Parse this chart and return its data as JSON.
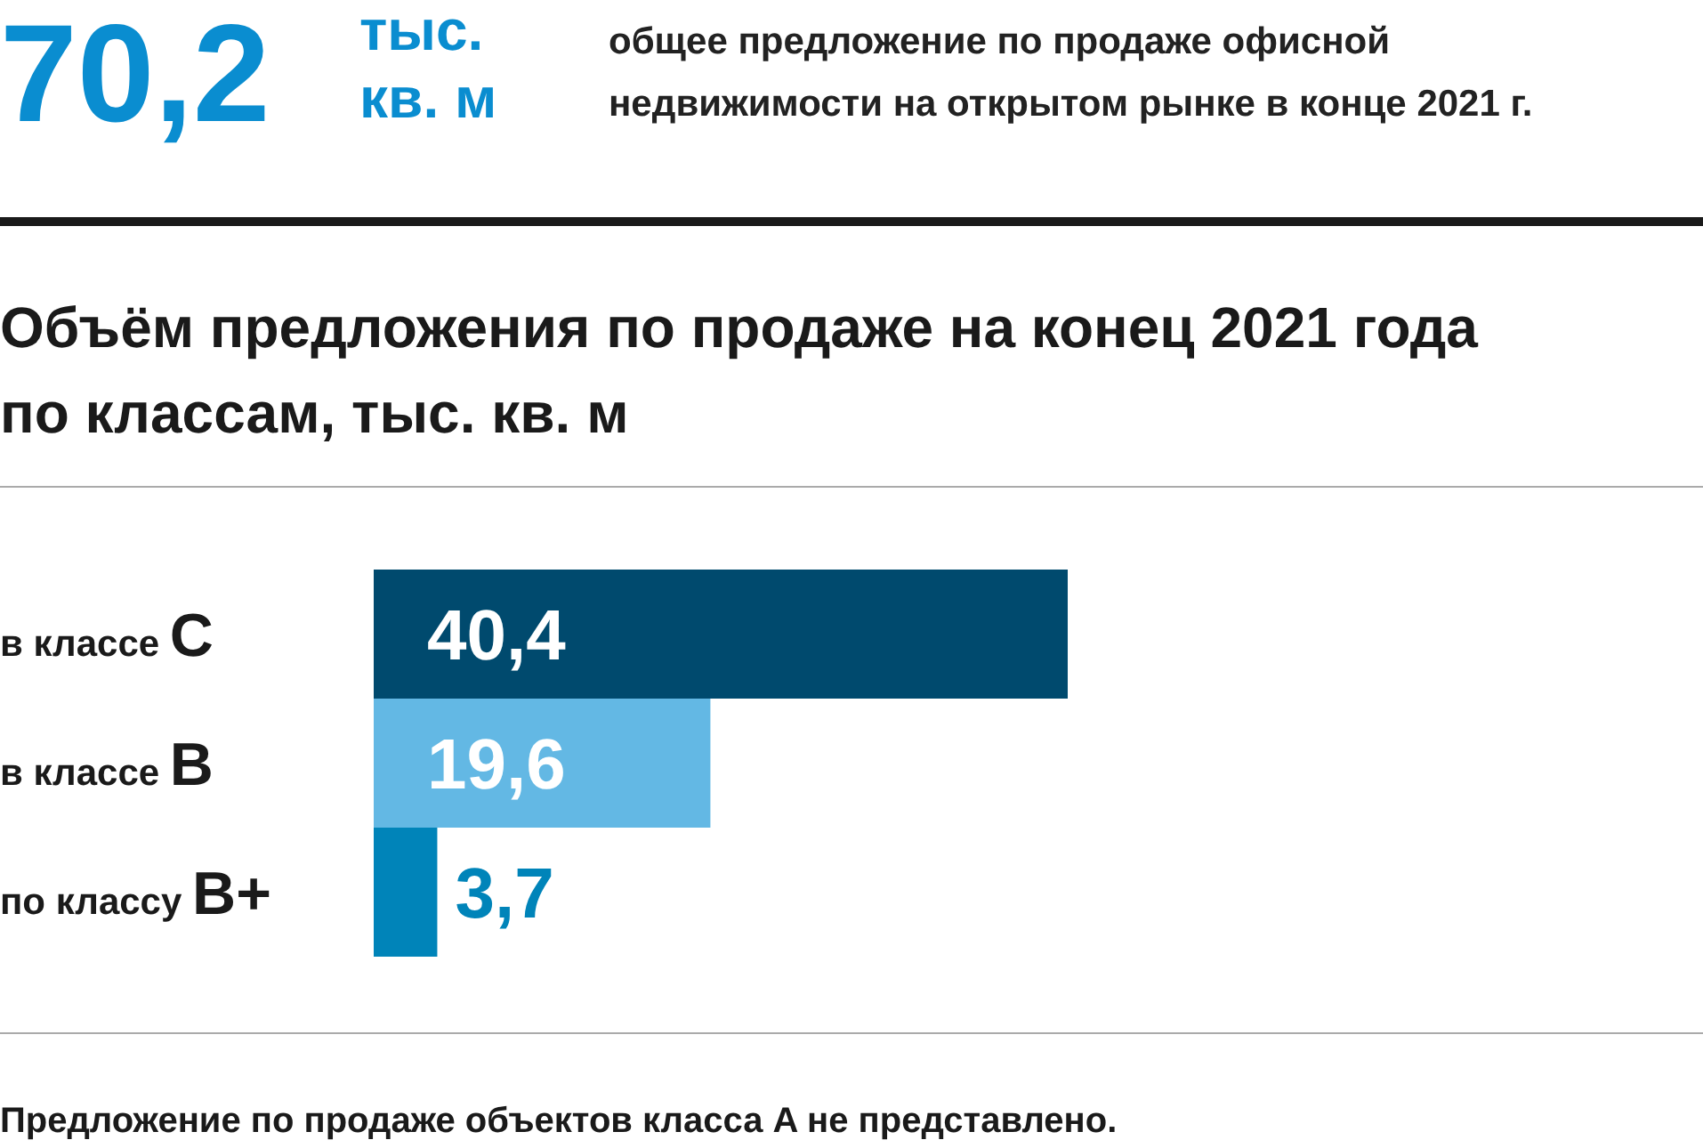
{
  "chart_data": {
    "type": "bar",
    "orientation": "horizontal",
    "title": "Объём предложения по продаже на конец 2021 года по классам, тыс. кв. м",
    "categories": [
      "в классе C",
      "в классе B",
      "по классу B+"
    ],
    "values": [
      40.4,
      19.6,
      3.7
    ],
    "colors": [
      "#004a6e",
      "#63b8e4",
      "#0084b9"
    ],
    "value_labels": [
      "40,4",
      "19,6",
      "3,7"
    ],
    "annotations": [
      "70,2",
      "тыс. кв. м",
      "общее предложение по продаже офисной недвижимости на открытом рынке в конце 2021 г.",
      "Предложение по продаже объектов класса A не представлено."
    ]
  }
}
